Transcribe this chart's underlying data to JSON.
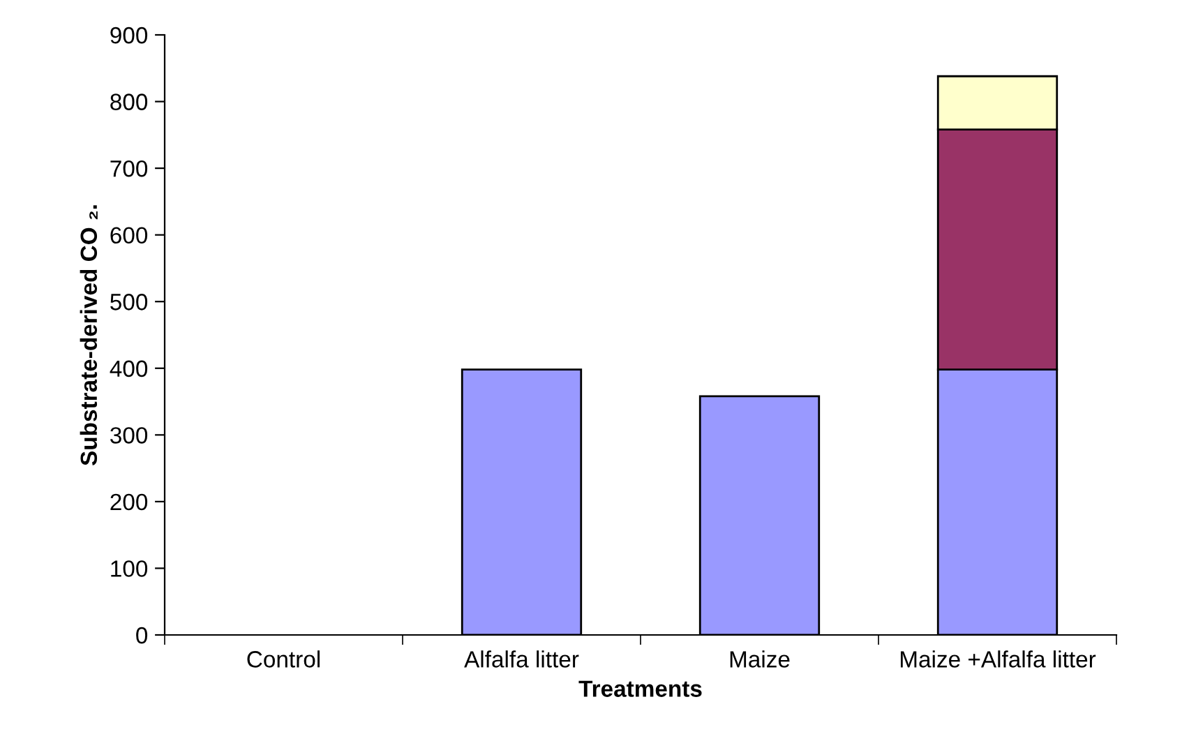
{
  "chart_data": {
    "type": "bar",
    "stacked": true,
    "xlabel": "Treatments",
    "ylabel": "Substrate-derived CO ₂.",
    "categories": [
      "Control",
      "Alfalfa litter",
      "Maize",
      "Maize +Alfalfa litter"
    ],
    "series": [
      {
        "color": "#9999ff",
        "values": [
          null,
          398,
          358,
          398
        ]
      },
      {
        "color": "#993366",
        "values": [
          null,
          null,
          null,
          360
        ]
      },
      {
        "color": "#ffffcc",
        "values": [
          null,
          null,
          null,
          80
        ]
      }
    ],
    "ylim": [
      0,
      900
    ],
    "yticks": [
      0,
      100,
      200,
      300,
      400,
      500,
      600,
      700,
      800,
      900
    ],
    "grid": false,
    "legend": false
  }
}
